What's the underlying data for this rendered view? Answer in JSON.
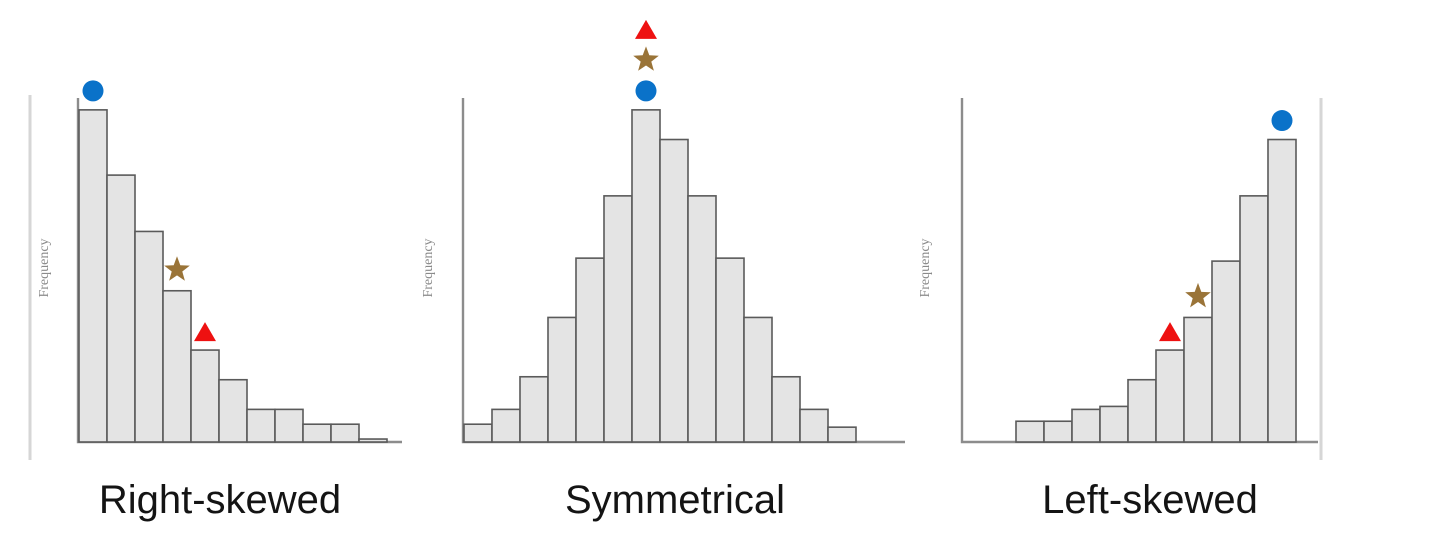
{
  "chart_data": [
    {
      "type": "bar",
      "title": "Right-skewed",
      "ylabel": "Frequency",
      "xlabel": "",
      "ylim": [
        0,
        11.6
      ],
      "values": [
        11.2,
        9.0,
        7.1,
        5.1,
        3.1,
        2.1,
        1.1,
        1.1,
        0.6,
        0.6,
        0.1
      ],
      "markers": [
        {
          "name": "circle",
          "color": "#0a72c9",
          "bin": 0,
          "on_value": 11.2
        },
        {
          "name": "star",
          "color": "#9a7438",
          "bin": 3,
          "on_value": 5.1
        },
        {
          "name": "triangle",
          "color": "#ee1111",
          "bin": 4,
          "on_value": 3.1
        }
      ]
    },
    {
      "type": "bar",
      "title": "Symmetrical",
      "ylabel": "Frequency",
      "xlabel": "",
      "ylim": [
        0,
        11.6
      ],
      "values": [
        0.6,
        1.1,
        2.2,
        4.2,
        6.2,
        8.3,
        11.2,
        10.2,
        8.3,
        6.2,
        4.2,
        2.2,
        1.1,
        0.5
      ],
      "markers": [
        {
          "name": "circle",
          "color": "#0a72c9",
          "bin": 6,
          "on_value": 11.2
        },
        {
          "name": "star",
          "color": "#9a7438",
          "bin": 6,
          "on_value": 11.2
        },
        {
          "name": "triangle",
          "color": "#ee1111",
          "bin": 6,
          "on_value": 11.2
        }
      ]
    },
    {
      "type": "bar",
      "title": "Left-skewed",
      "ylabel": "Frequency",
      "xlabel": "",
      "ylim": [
        0,
        11.6
      ],
      "values": [
        0.7,
        0.7,
        1.1,
        1.2,
        2.1,
        3.1,
        4.2,
        6.1,
        8.3,
        10.2
      ],
      "markers": [
        {
          "name": "circle",
          "color": "#0a72c9",
          "bin": 9,
          "on_value": 10.2
        },
        {
          "name": "star",
          "color": "#9a7438",
          "bin": 6,
          "on_value": 4.2
        },
        {
          "name": "triangle",
          "color": "#ee1111",
          "bin": 5,
          "on_value": 3.1
        }
      ]
    }
  ]
}
